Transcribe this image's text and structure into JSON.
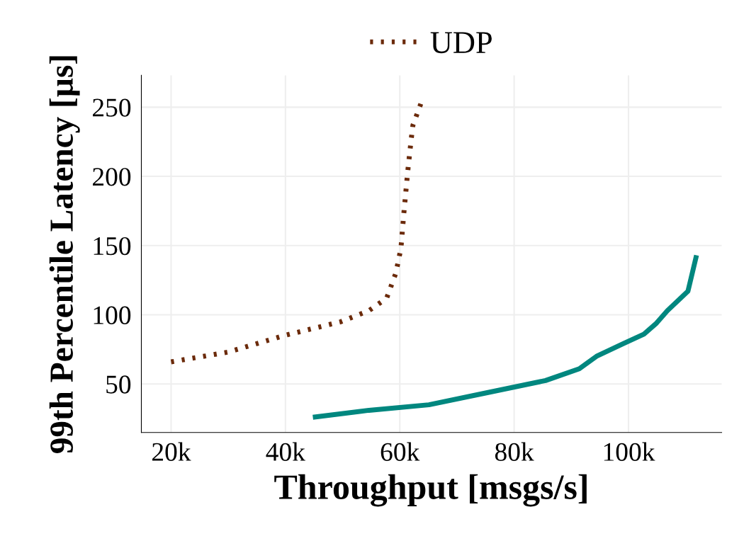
{
  "chart_data": {
    "type": "line",
    "xlabel": "Throughput [msgs/s]",
    "ylabel": "99th Percentile Latency [µs]",
    "xlim": [
      14800,
      116300
    ],
    "ylim": [
      15,
      273
    ],
    "xticks": [
      {
        "value": 20000,
        "label": "20k"
      },
      {
        "value": 40000,
        "label": "40k"
      },
      {
        "value": 60000,
        "label": "60k"
      },
      {
        "value": 80000,
        "label": "80k"
      },
      {
        "value": 100000,
        "label": "100k"
      }
    ],
    "yticks": [
      50,
      100,
      150,
      200,
      250
    ],
    "grid": true,
    "legend": "top",
    "series": [
      {
        "name": "UDP",
        "color": "#6b2a0a",
        "line_style": "dotted",
        "x": [
          20000,
          29900,
          39800,
          49700,
          54600,
          57700,
          59300,
          60200,
          60700,
          61400,
          62000,
          62300,
          63900
        ],
        "values": [
          66,
          73,
          85,
          95,
          103,
          112,
          130,
          148,
          173,
          204,
          227,
          237,
          255
        ]
      },
      {
        "color": "#00877f",
        "line_style": "solid",
        "x": [
          44800,
          54600,
          65100,
          75600,
          85500,
          91400,
          94400,
          99000,
          102700,
          104900,
          106800,
          110400,
          111900
        ],
        "values": [
          26,
          31,
          35,
          44,
          52.5,
          61,
          70,
          79,
          86,
          94,
          103,
          117,
          143
        ]
      }
    ]
  }
}
